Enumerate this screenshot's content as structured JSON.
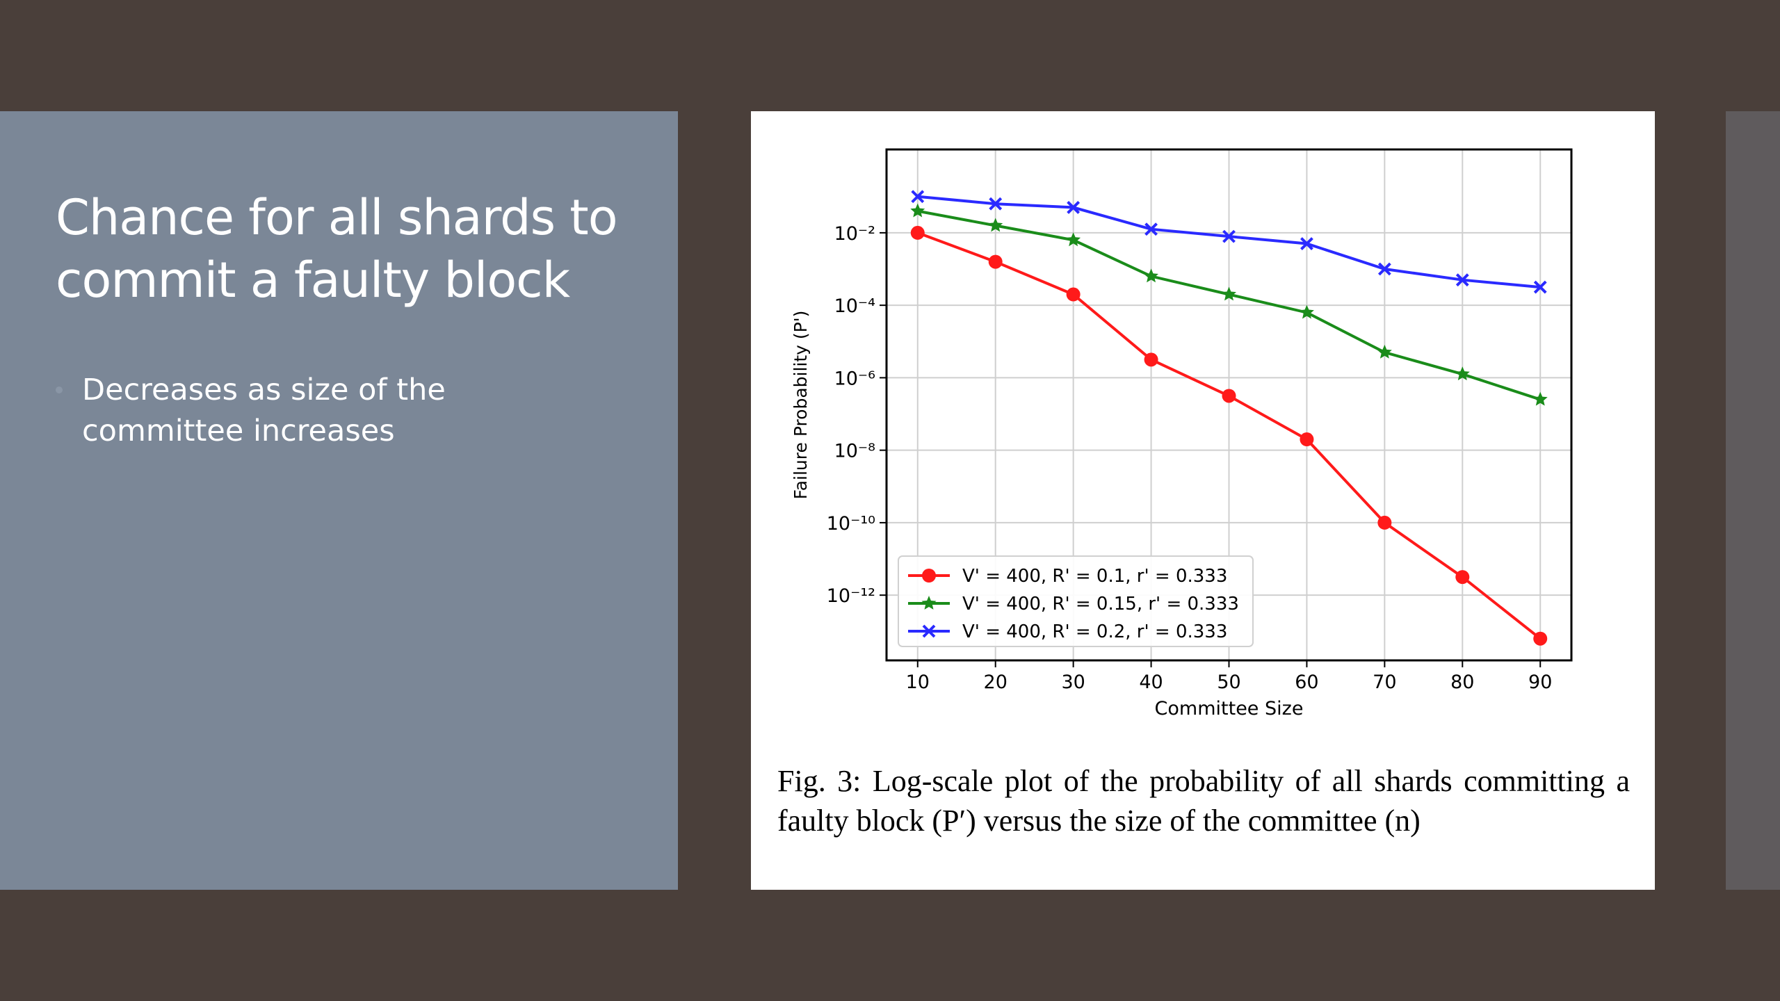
{
  "slide": {
    "title_line1": "Chance for all shards to",
    "title_line2": "commit a faulty block",
    "bullet": "Decreases as size of the committee increases"
  },
  "figure": {
    "caption": "Fig. 3: Log-scale plot of the probability of all shards committing a faulty block (P′) versus the size of the committee (n)"
  },
  "colors": {
    "background": "#4a3f3a",
    "left_panel": "#7b8797",
    "red": "#ff1a1a",
    "green": "#1a8c1a",
    "blue": "#2a2aff"
  },
  "chart_data": {
    "type": "line",
    "xlabel": "Committee Size",
    "ylabel": "Failure Probability (P')",
    "yscale": "log",
    "x": [
      10,
      20,
      30,
      40,
      50,
      60,
      70,
      80,
      90
    ],
    "xlim": [
      6,
      94
    ],
    "ylim_log10": [
      -13.8,
      0.3
    ],
    "xticks": [
      "10",
      "20",
      "30",
      "40",
      "50",
      "60",
      "70",
      "80",
      "90"
    ],
    "yticks": [
      {
        "exp": -2,
        "label": "10⁻²"
      },
      {
        "exp": -4,
        "label": "10⁻⁴"
      },
      {
        "exp": -6,
        "label": "10⁻⁶"
      },
      {
        "exp": -8,
        "label": "10⁻⁸"
      },
      {
        "exp": -10,
        "label": "10⁻¹⁰"
      },
      {
        "exp": -12,
        "label": "10⁻¹²"
      }
    ],
    "grid": true,
    "legend_position": "lower-left",
    "series": [
      {
        "name": "V' = 400, R' = 0.1, r' = 0.333",
        "color": "#ff1a1a",
        "marker": "circle",
        "values_log10": [
          -2.0,
          -2.8,
          -3.7,
          -5.5,
          -6.5,
          -7.7,
          -10.0,
          -11.5,
          -13.2
        ]
      },
      {
        "name": "V' = 400, R' = 0.15, r' = 0.333",
        "color": "#1a8c1a",
        "marker": "star",
        "values_log10": [
          -1.4,
          -1.8,
          -2.2,
          -3.2,
          -3.7,
          -4.2,
          -5.3,
          -5.9,
          -6.6
        ]
      },
      {
        "name": "V' = 400, R' = 0.2, r' = 0.333",
        "color": "#2a2aff",
        "marker": "x",
        "values_log10": [
          -1.0,
          -1.2,
          -1.3,
          -1.9,
          -2.1,
          -2.3,
          -3.0,
          -3.3,
          -3.5
        ]
      }
    ]
  }
}
